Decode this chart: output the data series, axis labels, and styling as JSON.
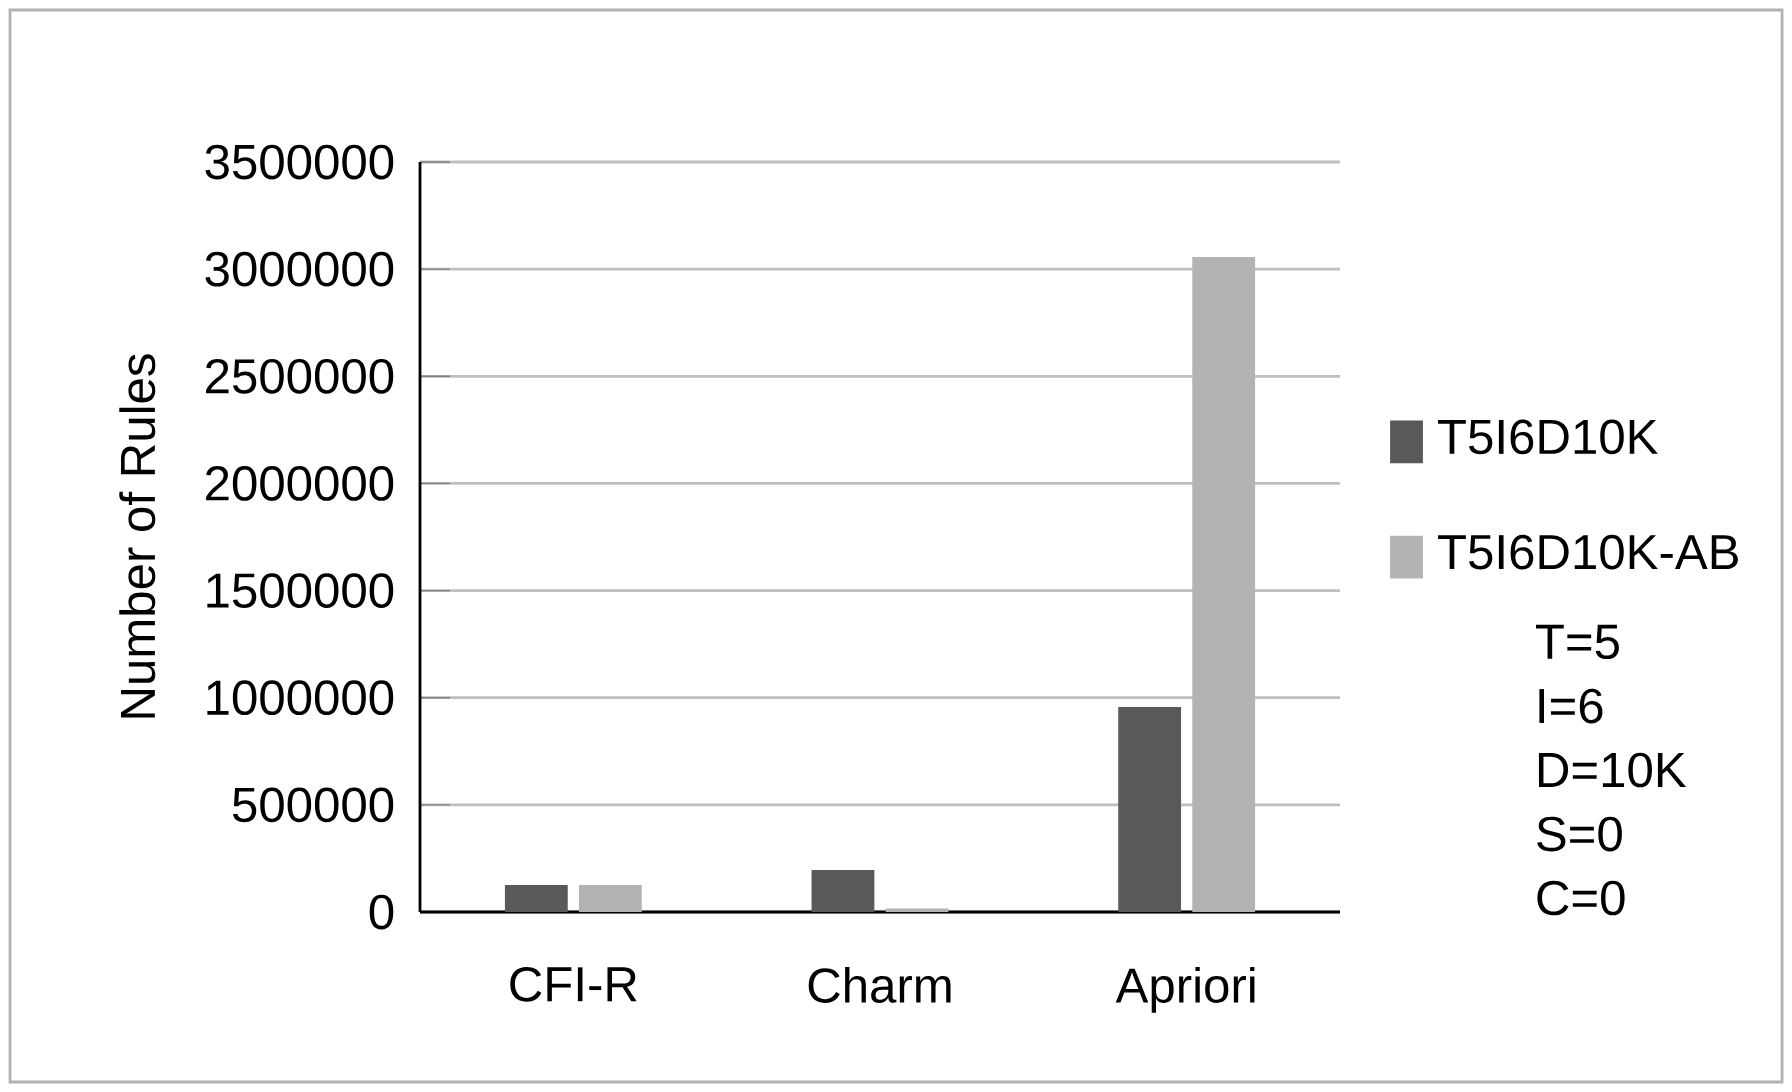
{
  "chart_data": {
    "type": "bar",
    "ylabel": "Number of Rules",
    "categories": [
      "CFI-R",
      "Charm",
      "Apriori"
    ],
    "series": [
      {
        "name": "T5I6D10K",
        "color": "#595959",
        "values": [
          120000,
          190000,
          950000
        ]
      },
      {
        "name": "T5I6D10K-AB",
        "color": "#b3b3b3",
        "values": [
          120000,
          10000,
          3050000
        ]
      }
    ],
    "ylim": [
      0,
      3500000
    ],
    "yticks": [
      0,
      500000,
      1000000,
      1500000,
      2000000,
      2500000,
      3000000,
      3500000
    ],
    "grid": "y",
    "legend": "right",
    "annotations": [
      "T=5",
      "I=6",
      "D=10K",
      "S=0",
      "C=0"
    ]
  }
}
